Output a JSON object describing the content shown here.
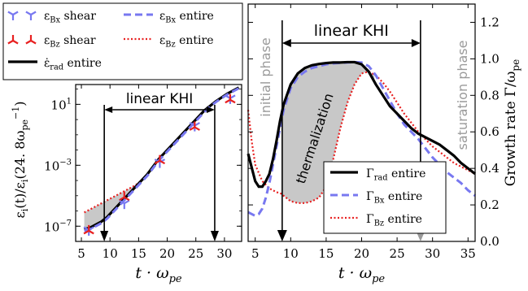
{
  "colors": {
    "black": "#000000",
    "blue": "#7878f0",
    "red": "#e82020",
    "band": "#c8c8c8",
    "annotation_gray": "#9a9a9a"
  },
  "chart_data": [
    {
      "type": "line",
      "panel": "left",
      "xlabel": "t · ω_pe",
      "ylabel": "ε_i(t)/ε_i(24.8 ω_pe^-1)",
      "ylabel_parts": {
        "main": "ε",
        "sub1": "i",
        "mid": "(t)/ε",
        "sub2": "i",
        "tail": "(24. 8ω",
        "sub3": "pe",
        "sup3": "−1",
        "end": ")"
      },
      "xlabel_parts": {
        "main": "t · ω",
        "sub": "pe"
      },
      "xlim": [
        4,
        33
      ],
      "ylim_log10": [
        -8,
        2.3
      ],
      "yscale": "log",
      "xticks": [
        5,
        10,
        15,
        20,
        25,
        30
      ],
      "yticks": [
        {
          "exp": -7,
          "label": "10",
          "sup": "−7"
        },
        {
          "exp": -3,
          "label": "10",
          "sup": "−3"
        },
        {
          "exp": 1,
          "label": "10",
          "sup": "1"
        }
      ],
      "annotation": "linear KHI",
      "arrow_x": [
        9,
        28.3
      ],
      "series": [
        {
          "name": "ε_rad entire",
          "style": "solid",
          "x": [
            5.5,
            6.5,
            7.5,
            8.5,
            9.5,
            10.5,
            11.5,
            12.5,
            13.5,
            14.5,
            15.5,
            16.5,
            17.5,
            18.5,
            19.5,
            20.5,
            21.5,
            22.5,
            23.5,
            24.5,
            25.5,
            26.5,
            27.5,
            28.5,
            29.5,
            30.5,
            31.5,
            32.5
          ],
          "log10_y": [
            -7.2,
            -7.1,
            -6.9,
            -6.7,
            -6.4,
            -6.0,
            -5.6,
            -5.2,
            -4.8,
            -4.4,
            -4.0,
            -3.6,
            -3.1,
            -2.6,
            -2.2,
            -1.8,
            -1.4,
            -1.0,
            -0.6,
            -0.2,
            0.2,
            0.6,
            0.9,
            1.2,
            1.45,
            1.7,
            1.9,
            2.1
          ]
        },
        {
          "name": "ε_Bx entire",
          "style": "dashed",
          "x": [
            5.5,
            6.5,
            7.5,
            8.5,
            9.5,
            10.5,
            11.5,
            12.5,
            13.5,
            14.5,
            15.5,
            16.5,
            17.5,
            18.5,
            19.5,
            20.5,
            21.5,
            22.5,
            23.5,
            24.5,
            25.5,
            26.5,
            27.5,
            28.5,
            29.5,
            30.5,
            31.5,
            32.5
          ],
          "log10_y": [
            -7.3,
            -7.2,
            -7.0,
            -6.8,
            -6.5,
            -6.1,
            -5.7,
            -5.3,
            -4.9,
            -4.5,
            -4.1,
            -3.7,
            -3.2,
            -2.7,
            -2.3,
            -1.9,
            -1.5,
            -1.1,
            -0.7,
            -0.3,
            0.1,
            0.5,
            0.85,
            1.15,
            1.4,
            1.65,
            1.85,
            2.05
          ]
        },
        {
          "name": "ε_Bz entire",
          "style": "dotted",
          "x": [
            5.5,
            6.5,
            7.5,
            8.5,
            9.5,
            10.5,
            11.5,
            12.5,
            13.5,
            14.5,
            15.5,
            16.5,
            17.5,
            18.5,
            19.5,
            20.5,
            21.5,
            22.5,
            23.5,
            24.5,
            25.5,
            26.5,
            27.5,
            28.5,
            29.5,
            30.5,
            31.5,
            32.5
          ],
          "log10_y": [
            -6.1,
            -5.9,
            -5.7,
            -5.5,
            -5.3,
            -5.1,
            -4.9,
            -4.7,
            -4.5,
            -4.3,
            -4.0,
            -3.6,
            -3.1,
            -2.6,
            -2.2,
            -1.8,
            -1.4,
            -1.0,
            -0.6,
            -0.2,
            0.2,
            0.6,
            0.9,
            1.2,
            1.45,
            1.7,
            1.9,
            2.1
          ]
        },
        {
          "name": "ε_Bx shear",
          "style": "marker-blue",
          "x": [
            6.3,
            12.5,
            18.7,
            24.8,
            31.0
          ],
          "log10_y": [
            -7.25,
            -5.5,
            -2.8,
            -0.4,
            1.4
          ]
        },
        {
          "name": "ε_Bz shear",
          "style": "marker-red",
          "x": [
            6.3,
            12.5,
            18.7,
            24.8,
            31.0
          ],
          "log10_y": [
            -7.3,
            -5.1,
            -2.7,
            -0.5,
            1.3
          ]
        }
      ]
    },
    {
      "type": "line",
      "panel": "right",
      "xlabel": "t · ω_pe",
      "xlabel_parts": {
        "main": "t · ω",
        "sub": "pe"
      },
      "ylabel": "Growth rate Γ/ω_pe",
      "ylabel_parts": {
        "main": "Growth rate Γ/ω",
        "sub": "pe"
      },
      "xlim": [
        4,
        36
      ],
      "ylim": [
        0,
        1.3
      ],
      "xticks": [
        5,
        10,
        15,
        20,
        25,
        30,
        35
      ],
      "yticks": [
        0.0,
        0.2,
        0.4,
        0.6,
        0.8,
        1.0,
        1.2
      ],
      "ytick_labels": [
        "0.0",
        "0.2",
        "0.4",
        "0.6",
        "0.8",
        "1.0",
        "1.2"
      ],
      "annotation": "linear KHI",
      "phase_labels": [
        "initial phase",
        "thermalization",
        "saturation phase"
      ],
      "arrow_x": [
        8.8,
        28.3
      ],
      "series": [
        {
          "name": "Γ_rad entire",
          "legend_parts": {
            "main": "Γ",
            "sub": "rad",
            "tail": " entire"
          },
          "style": "solid",
          "x": [
            4,
            5,
            5.5,
            6,
            6.5,
            7,
            7.5,
            8,
            8.5,
            9,
            10,
            11,
            12,
            13,
            14,
            15,
            16,
            17,
            18,
            19,
            20,
            21,
            22,
            23,
            24,
            25,
            26,
            27,
            28,
            29,
            30,
            31,
            32,
            33,
            34,
            35,
            36
          ],
          "y": [
            0.48,
            0.33,
            0.3,
            0.3,
            0.33,
            0.37,
            0.45,
            0.55,
            0.66,
            0.75,
            0.86,
            0.92,
            0.95,
            0.965,
            0.972,
            0.977,
            0.98,
            0.98,
            0.982,
            0.982,
            0.97,
            0.93,
            0.86,
            0.8,
            0.74,
            0.7,
            0.66,
            0.62,
            0.59,
            0.57,
            0.55,
            0.53,
            0.5,
            0.47,
            0.43,
            0.4,
            0.37
          ]
        },
        {
          "name": "Γ_Bx entire",
          "legend_parts": {
            "main": "Γ",
            "sub": "Bx",
            "tail": " entire"
          },
          "style": "dashed",
          "x": [
            4,
            5,
            5.5,
            6,
            6.5,
            7,
            7.5,
            8,
            8.5,
            9,
            10,
            11,
            12,
            13,
            14,
            15,
            16,
            17,
            18,
            19,
            20,
            21,
            22,
            23,
            24,
            25,
            26,
            27,
            28,
            29,
            30,
            31,
            32,
            33,
            34,
            35,
            36
          ],
          "y": [
            0.16,
            0.14,
            0.15,
            0.18,
            0.24,
            0.32,
            0.42,
            0.52,
            0.62,
            0.72,
            0.84,
            0.9,
            0.93,
            0.95,
            0.96,
            0.97,
            0.975,
            0.978,
            0.98,
            0.982,
            0.98,
            0.96,
            0.91,
            0.84,
            0.77,
            0.7,
            0.64,
            0.6,
            0.56,
            0.51,
            0.46,
            0.42,
            0.38,
            0.35,
            0.32,
            0.28,
            0.25
          ]
        },
        {
          "name": "Γ_Bz entire",
          "legend_parts": {
            "main": "Γ",
            "sub": "Bz",
            "tail": " entire"
          },
          "style": "dotted",
          "x": [
            4,
            4.5,
            5,
            6,
            7,
            8,
            8.8,
            9,
            10,
            11,
            12,
            13,
            14,
            15,
            16,
            17,
            18,
            19,
            20,
            21,
            22,
            23,
            24,
            25,
            26,
            27,
            28,
            29,
            30,
            31,
            32,
            33,
            34,
            35,
            36
          ],
          "y": [
            0.72,
            0.55,
            0.42,
            0.33,
            0.29,
            0.27,
            0.26,
            0.25,
            0.22,
            0.21,
            0.21,
            0.22,
            0.24,
            0.3,
            0.45,
            0.62,
            0.76,
            0.86,
            0.92,
            0.93,
            0.91,
            0.87,
            0.82,
            0.76,
            0.7,
            0.65,
            0.6,
            0.56,
            0.52,
            0.49,
            0.46,
            0.43,
            0.41,
            0.39,
            0.37
          ]
        }
      ]
    }
  ],
  "legend_left": [
    {
      "symbol": "marker-blue",
      "parts": {
        "main": "ε",
        "sub": "Bx",
        "tail": " shear"
      }
    },
    {
      "symbol": "dashed",
      "parts": {
        "main": "ε",
        "sub": "Bx",
        "tail": " entire"
      }
    },
    {
      "symbol": "marker-red",
      "parts": {
        "main": "ε",
        "sub": "Bz",
        "tail": " shear"
      }
    },
    {
      "symbol": "dotted",
      "parts": {
        "main": "ε",
        "sub": "Bz",
        "tail": " entire"
      }
    },
    {
      "symbol": "solid",
      "parts": {
        "main": "ε̇",
        "sub": "rad",
        "tail": " entire"
      }
    }
  ]
}
